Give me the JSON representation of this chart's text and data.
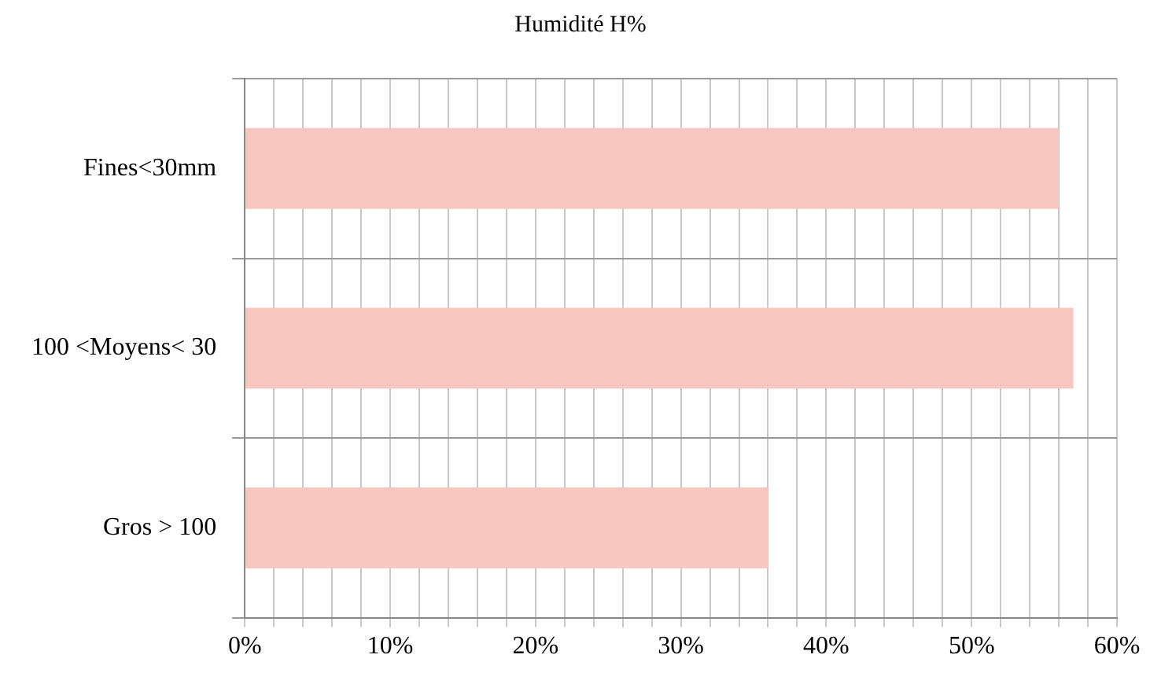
{
  "chart_data": {
    "type": "bar",
    "orientation": "horizontal",
    "title": "Humidité  H%",
    "categories": [
      "Fines<30mm",
      "100 <Moyens< 30",
      "Gros > 100"
    ],
    "values": [
      56,
      57,
      36
    ],
    "color": "#f7c6be",
    "xlim": [
      0,
      60
    ],
    "xticks": [
      {
        "value": 0,
        "label": "0%"
      },
      {
        "value": 2,
        "label": null
      },
      {
        "value": 4,
        "label": null
      },
      {
        "value": 6,
        "label": null
      },
      {
        "value": 8,
        "label": null
      },
      {
        "value": 10,
        "label": "10%"
      },
      {
        "value": 12,
        "label": null
      },
      {
        "value": 14,
        "label": null
      },
      {
        "value": 16,
        "label": null
      },
      {
        "value": 18,
        "label": null
      },
      {
        "value": 20,
        "label": "20%"
      },
      {
        "value": 22,
        "label": null
      },
      {
        "value": 24,
        "label": null
      },
      {
        "value": 26,
        "label": null
      },
      {
        "value": 28,
        "label": null
      },
      {
        "value": 30,
        "label": "30%"
      },
      {
        "value": 32,
        "label": null
      },
      {
        "value": 34,
        "label": null
      },
      {
        "value": 36,
        "label": null
      },
      {
        "value": 38,
        "label": null
      },
      {
        "value": 40,
        "label": "40%"
      },
      {
        "value": 42,
        "label": null
      },
      {
        "value": 44,
        "label": null
      },
      {
        "value": 46,
        "label": null
      },
      {
        "value": 48,
        "label": null
      },
      {
        "value": 50,
        "label": "50%"
      },
      {
        "value": 52,
        "label": null
      },
      {
        "value": 54,
        "label": null
      },
      {
        "value": 56,
        "label": null
      },
      {
        "value": 58,
        "label": null
      },
      {
        "value": 60,
        "label": "60%"
      }
    ],
    "grid": true
  }
}
